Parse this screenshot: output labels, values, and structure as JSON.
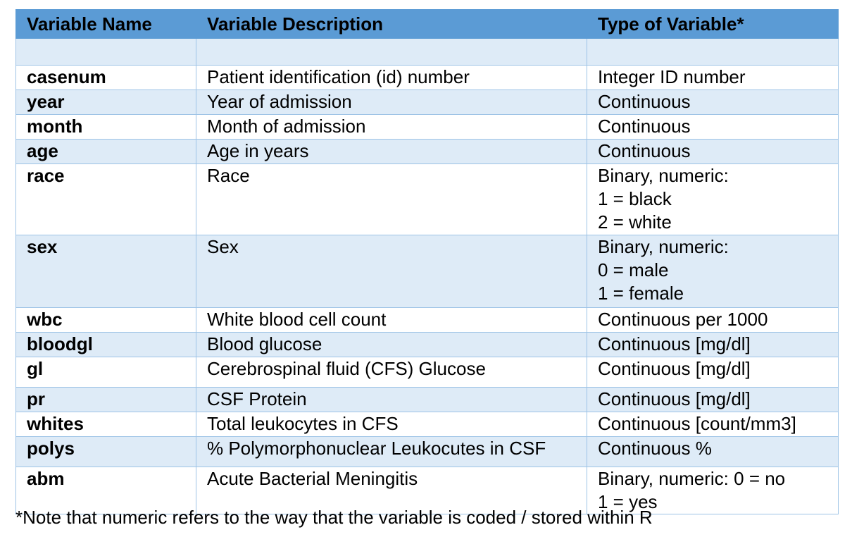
{
  "header": {
    "col_name": "Variable Name",
    "col_desc": "Variable Description",
    "col_type": "Type of Variable*"
  },
  "rows": [
    {
      "name": "casenum",
      "desc": "Patient identification (id) number",
      "type": [
        "Integer ID number"
      ]
    },
    {
      "name": "year",
      "desc": "Year of admission",
      "type": [
        "Continuous"
      ]
    },
    {
      "name": "month",
      "desc": "Month of admission",
      "type": [
        "Continuous"
      ]
    },
    {
      "name": "age",
      "desc": "Age in years",
      "type": [
        "Continuous"
      ]
    },
    {
      "name": "race",
      "desc": "Race",
      "type": [
        "Binary, numeric:",
        "1 = black",
        "2 = white"
      ]
    },
    {
      "name": "sex",
      "desc": "Sex",
      "type": [
        "Binary, numeric:",
        "0 = male",
        "1 = female"
      ]
    },
    {
      "name": "wbc",
      "desc": "White blood cell count",
      "type": [
        "Continuous per 1000"
      ]
    },
    {
      "name": "bloodgl",
      "desc": "Blood glucose",
      "type": [
        "Continuous [mg/dl]"
      ]
    },
    {
      "name": "gl",
      "desc": "Cerebrospinal fluid (CFS) Glucose",
      "type": [
        "Continuous [mg/dl]"
      ]
    },
    {
      "name": "pr",
      "desc": "CSF Protein",
      "type": [
        "Continuous [mg/dl]"
      ]
    },
    {
      "name": "whites",
      "desc": "Total leukocytes in CFS",
      "type": [
        "Continuous [count/mm3]"
      ]
    },
    {
      "name": "polys",
      "desc": "% Polymorphonuclear Leukocutes in CSF",
      "type": [
        "Continuous %"
      ]
    },
    {
      "name": "abm",
      "desc": "Acute Bacterial Meningitis",
      "type": [
        "Binary, numeric: 0 = no",
        "1 = yes"
      ]
    }
  ],
  "footnote": "*Note that numeric refers to the way that the variable is coded / stored within R",
  "colors": {
    "header_bg": "#5b9bd5",
    "shade_bg": "#deebf7",
    "border": "#9dc3e6"
  }
}
